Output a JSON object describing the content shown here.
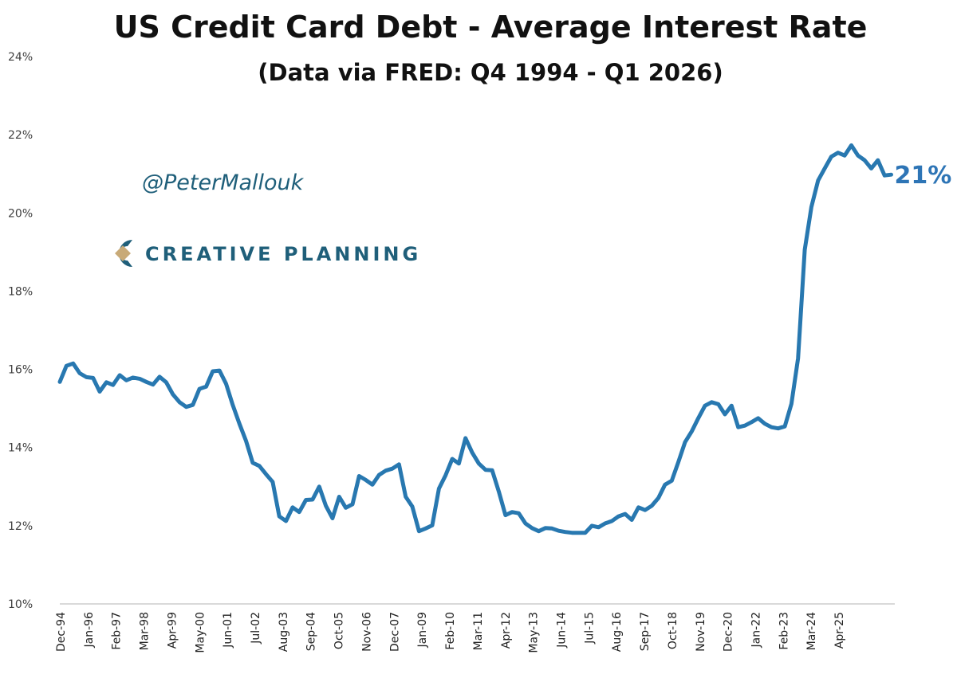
{
  "chart_data": {
    "type": "line",
    "title": "US Credit Card Debt - Average Interest Rate",
    "subtitle": "(Data via FRED: Q4 1994 - Q1 2026)",
    "xlabel": "",
    "ylabel": "",
    "ylim": [
      10,
      24
    ],
    "y_ticks": [
      "10%",
      "12%",
      "14%",
      "16%",
      "18%",
      "20%",
      "22%",
      "24%"
    ],
    "y_tick_values": [
      10,
      12,
      14,
      16,
      18,
      20,
      22,
      24
    ],
    "x_tick_labels": [
      "Dec-94",
      "Jan-96",
      "Feb-97",
      "Mar-98",
      "Apr-99",
      "May-00",
      "Jun-01",
      "Jul-02",
      "Aug-03",
      "Sep-04",
      "Oct-05",
      "Nov-06",
      "Dec-07",
      "Jan-09",
      "Feb-10",
      "Mar-11",
      "Apr-12",
      "May-13",
      "Jun-14",
      "Jul-15",
      "Aug-16",
      "Sep-17",
      "Oct-18",
      "Nov-19",
      "Dec-20",
      "Jan-22",
      "Feb-23",
      "Mar-24",
      "Apr-25"
    ],
    "grid": false,
    "legend": "none",
    "color": "#2878b0",
    "end_label": "21%",
    "x": [
      "1994Q4",
      "1995Q1",
      "1995Q2",
      "1995Q3",
      "1995Q4",
      "1996Q1",
      "1996Q2",
      "1996Q3",
      "1996Q4",
      "1997Q1",
      "1997Q2",
      "1997Q3",
      "1997Q4",
      "1998Q1",
      "1998Q2",
      "1998Q3",
      "1998Q4",
      "1999Q1",
      "1999Q2",
      "1999Q3",
      "1999Q4",
      "2000Q1",
      "2000Q2",
      "2000Q3",
      "2000Q4",
      "2001Q1",
      "2001Q2",
      "2001Q3",
      "2001Q4",
      "2002Q1",
      "2002Q2",
      "2002Q3",
      "2002Q4",
      "2003Q1",
      "2003Q2",
      "2003Q3",
      "2003Q4",
      "2004Q1",
      "2004Q2",
      "2004Q3",
      "2004Q4",
      "2005Q1",
      "2005Q2",
      "2005Q3",
      "2005Q4",
      "2006Q1",
      "2006Q2",
      "2006Q3",
      "2006Q4",
      "2007Q1",
      "2007Q2",
      "2007Q3",
      "2007Q4",
      "2008Q1",
      "2008Q2",
      "2008Q3",
      "2008Q4",
      "2009Q1",
      "2009Q2",
      "2009Q3",
      "2009Q4",
      "2010Q1",
      "2010Q2",
      "2010Q3",
      "2010Q4",
      "2011Q1",
      "2011Q2",
      "2011Q3",
      "2011Q4",
      "2012Q1",
      "2012Q2",
      "2012Q3",
      "2012Q4",
      "2013Q1",
      "2013Q2",
      "2013Q3",
      "2013Q4",
      "2014Q1",
      "2014Q2",
      "2014Q3",
      "2014Q4",
      "2015Q1",
      "2015Q2",
      "2015Q3",
      "2015Q4",
      "2016Q1",
      "2016Q2",
      "2016Q3",
      "2016Q4",
      "2017Q1",
      "2017Q2",
      "2017Q3",
      "2017Q4",
      "2018Q1",
      "2018Q2",
      "2018Q3",
      "2018Q4",
      "2019Q1",
      "2019Q2",
      "2019Q3",
      "2019Q4",
      "2020Q1",
      "2020Q2",
      "2020Q3",
      "2020Q4",
      "2021Q1",
      "2021Q2",
      "2021Q3",
      "2021Q4",
      "2022Q1",
      "2022Q2",
      "2022Q3",
      "2022Q4",
      "2023Q1",
      "2023Q2",
      "2023Q3",
      "2023Q4",
      "2024Q1",
      "2024Q2",
      "2024Q3",
      "2024Q4",
      "2025Q1",
      "2025Q2",
      "2025Q3",
      "2025Q4",
      "2026Q1"
    ],
    "values": [
      15.68,
      16.09,
      16.15,
      15.9,
      15.8,
      15.78,
      15.43,
      15.67,
      15.6,
      15.85,
      15.72,
      15.79,
      15.76,
      15.68,
      15.61,
      15.81,
      15.67,
      15.36,
      15.16,
      15.04,
      15.09,
      15.5,
      15.56,
      15.95,
      15.97,
      15.63,
      15.09,
      14.61,
      14.17,
      13.61,
      13.53,
      13.32,
      13.12,
      12.24,
      12.12,
      12.47,
      12.35,
      12.66,
      12.67,
      13.0,
      12.51,
      12.19,
      12.74,
      12.46,
      12.55,
      13.27,
      13.17,
      13.05,
      13.3,
      13.41,
      13.46,
      13.57,
      12.74,
      12.49,
      11.86,
      11.93,
      12.01,
      12.95,
      13.29,
      13.71,
      13.59,
      14.24,
      13.87,
      13.59,
      13.43,
      13.42,
      12.88,
      12.27,
      12.35,
      12.32,
      12.06,
      11.94,
      11.86,
      11.94,
      11.93,
      11.87,
      11.84,
      11.82,
      11.82,
      11.82,
      12.0,
      11.96,
      12.06,
      12.12,
      12.24,
      12.3,
      12.15,
      12.47,
      12.4,
      12.51,
      12.71,
      13.05,
      13.15,
      13.63,
      14.14,
      14.41,
      14.75,
      15.07,
      15.16,
      15.11,
      14.85,
      15.07,
      14.52,
      14.56,
      14.65,
      14.75,
      14.61,
      14.52,
      14.49,
      14.54,
      15.12,
      16.28,
      19.06,
      20.15,
      20.83,
      21.14,
      21.44,
      21.54,
      21.47,
      21.73,
      21.47,
      21.35,
      21.14,
      21.35,
      20.96,
      20.98
    ]
  },
  "watermark": {
    "handle": "@PeterMallouk",
    "logo_text": "CREATIVE PLANNING",
    "logo_colors": {
      "primary": "#1f5f7a",
      "accent": "#c8aa78"
    }
  }
}
